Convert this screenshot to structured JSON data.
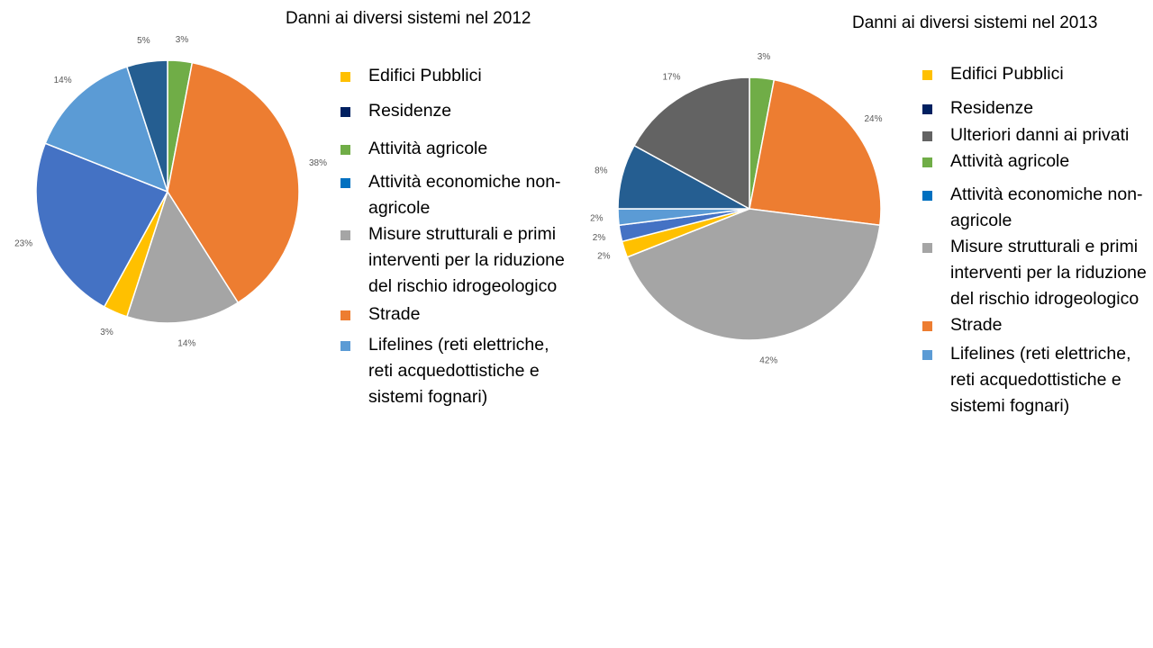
{
  "colors": {
    "edifici_pubblici": "#FFC000",
    "residenze": "#002060",
    "ulteriori_danni": "#636363",
    "attivita_agricole": "#70AD47",
    "attivita_economiche": "#0070C0",
    "misure_strutturali": "#A5A5A5",
    "strade": "#ED7D31",
    "lifelines": "#5B9BD5",
    "royal_blue": "#4472C4",
    "dark_blue": "#255E91"
  },
  "chart_data": [
    {
      "type": "pie",
      "title": "Danni ai diversi sistemi nel 2012",
      "slices": [
        {
          "value": 3,
          "label": "3%",
          "color": "#70AD47"
        },
        {
          "value": 38,
          "label": "38%",
          "color": "#ED7D31"
        },
        {
          "value": 14,
          "label": "14%",
          "color": "#A5A5A5"
        },
        {
          "value": 3,
          "label": "3%",
          "color": "#FFC000"
        },
        {
          "value": 23,
          "label": "23%",
          "color": "#4472C4"
        },
        {
          "value": 14,
          "label": "14%",
          "color": "#5B9BD5"
        },
        {
          "value": 5,
          "label": "5%",
          "color": "#255E91"
        }
      ],
      "legend": [
        {
          "label": "Edifici Pubblici",
          "color": "#FFC000"
        },
        {
          "label": "Residenze",
          "color": "#002060"
        },
        {
          "label": "Attività agricole",
          "color": "#70AD47"
        },
        {
          "label": "Attività economiche non-agricole",
          "color": "#0070C0"
        },
        {
          "label": "Misure strutturali e primi interventi per la riduzione del rischio idrogeologico",
          "color": "#A5A5A5"
        },
        {
          "label": "Strade",
          "color": "#ED7D31"
        },
        {
          "label": "Lifelines (reti elettriche, reti acquedottistiche e sistemi fognari)",
          "color": "#5B9BD5"
        }
      ],
      "legend_placement": "right"
    },
    {
      "type": "pie",
      "title": "Danni ai diversi sistemi nel 2013",
      "slices": [
        {
          "value": 3,
          "label": "3%",
          "color": "#70AD47"
        },
        {
          "value": 24,
          "label": "24%",
          "color": "#ED7D31"
        },
        {
          "value": 42,
          "label": "42%",
          "color": "#A5A5A5"
        },
        {
          "value": 2,
          "label": "2%",
          "color": "#FFC000"
        },
        {
          "value": 2,
          "label": "2%",
          "color": "#4472C4"
        },
        {
          "value": 2,
          "label": "2%",
          "color": "#5B9BD5"
        },
        {
          "value": 8,
          "label": "8%",
          "color": "#255E91"
        },
        {
          "value": 17,
          "label": "17%",
          "color": "#636363"
        }
      ],
      "legend": [
        {
          "label": "Edifici Pubblici",
          "color": "#FFC000"
        },
        {
          "label": "Residenze",
          "color": "#002060"
        },
        {
          "label": "Ulteriori danni ai privati",
          "color": "#636363"
        },
        {
          "label": "Attività agricole",
          "color": "#70AD47"
        },
        {
          "label": "Attività economiche non-agricole",
          "color": "#0070C0"
        },
        {
          "label": "Misure strutturali e primi interventi per la riduzione del rischio idrogeologico",
          "color": "#A5A5A5"
        },
        {
          "label": "Strade",
          "color": "#ED7D31"
        },
        {
          "label": "Lifelines (reti elettriche, reti acquedottistiche e sistemi fognari)",
          "color": "#5B9BD5"
        }
      ],
      "legend_placement": "right"
    }
  ]
}
